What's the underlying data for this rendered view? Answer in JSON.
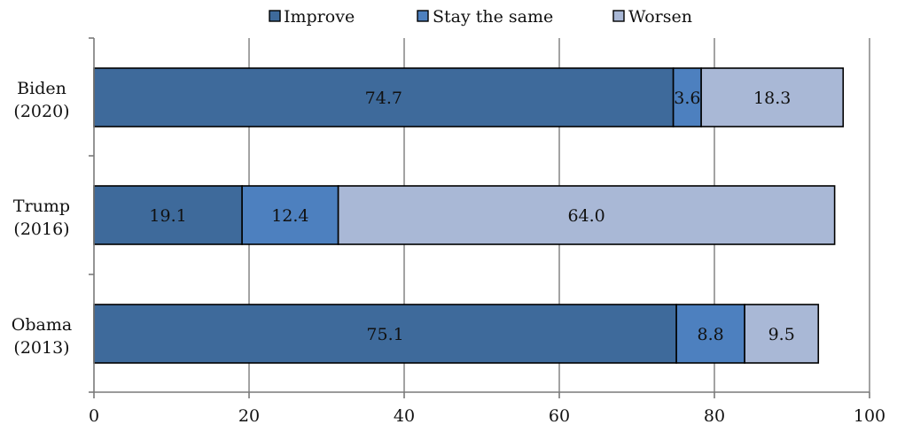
{
  "chart_data": {
    "type": "bar",
    "orientation": "horizontal",
    "stacked": true,
    "categories": [
      "Biden\n(2020)",
      "Trump\n(2016)",
      "Obama\n(2013)"
    ],
    "series": [
      {
        "name": "Improve",
        "color": "#3e6a9b",
        "values": [
          74.7,
          19.1,
          75.1
        ]
      },
      {
        "name": "Stay the same",
        "color": "#4d80bf",
        "values": [
          3.6,
          12.4,
          8.8
        ]
      },
      {
        "name": "Worsen",
        "color": "#a9b8d6",
        "values": [
          18.3,
          64.0,
          9.5
        ]
      }
    ],
    "xlim": [
      0,
      100
    ],
    "xticks": [
      0,
      20,
      40,
      60,
      80,
      100
    ],
    "grid": "vertical",
    "legend_position": "top"
  }
}
